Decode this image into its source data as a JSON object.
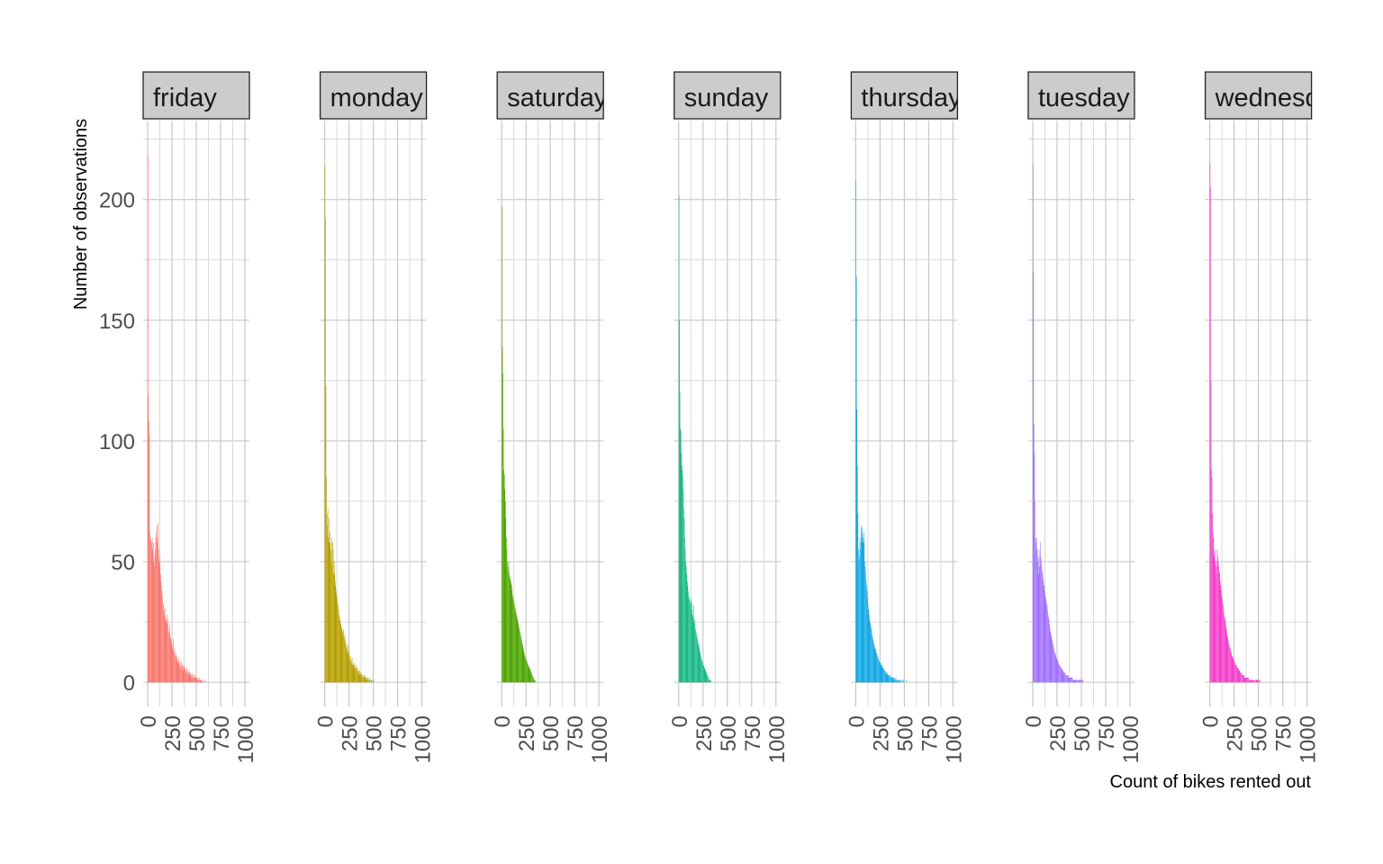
{
  "chart_data": {
    "type": "bar",
    "xlabel": "Count of bikes rented out",
    "ylabel": "Number of observations",
    "xlim": [
      0,
      1000
    ],
    "ylim": [
      0,
      220
    ],
    "x_ticks": [
      0,
      250,
      500,
      750,
      1000
    ],
    "y_ticks": [
      0,
      50,
      100,
      150,
      200
    ],
    "grid": true,
    "legend": "none",
    "bin_width": 5,
    "panels": [
      {
        "name": "friday",
        "color": "#F8766D",
        "values": [
          218,
          119,
          108,
          103,
          62,
          60,
          59,
          58,
          57,
          60,
          55,
          58,
          50,
          48,
          52,
          55,
          60,
          62,
          65,
          58,
          60,
          66,
          55,
          50,
          48,
          52,
          45,
          42,
          40,
          38,
          35,
          33,
          32,
          30,
          28,
          31,
          27,
          26,
          25,
          28,
          24,
          26,
          22,
          20,
          21,
          24,
          19,
          18,
          17,
          16,
          15,
          14,
          18,
          13,
          12,
          14,
          11,
          10,
          12,
          9,
          11,
          8,
          9,
          10,
          8,
          7,
          8,
          6,
          9,
          7,
          6,
          8,
          7,
          5,
          6,
          7,
          5,
          6,
          4,
          5,
          6,
          4,
          5,
          4,
          3,
          4,
          5,
          3,
          4,
          3,
          2,
          3,
          4,
          2,
          3,
          2,
          2,
          3,
          2,
          2,
          1,
          2,
          1,
          2,
          1,
          1,
          2,
          1,
          1,
          1,
          1,
          0,
          1,
          0,
          0,
          1,
          0,
          0,
          1,
          0
        ]
      },
      {
        "name": "monday",
        "color": "#B79F00",
        "values": [
          214,
          192,
          123,
          85,
          70,
          65,
          72,
          60,
          58,
          68,
          62,
          58,
          55,
          50,
          60,
          48,
          58,
          55,
          45,
          50,
          45,
          42,
          40,
          38,
          36,
          35,
          33,
          32,
          30,
          28,
          27,
          26,
          25,
          24,
          23,
          22,
          21,
          20,
          22,
          19,
          18,
          20,
          17,
          16,
          15,
          14,
          13,
          16,
          12,
          11,
          13,
          10,
          9,
          11,
          8,
          9,
          10,
          7,
          8,
          7,
          6,
          8,
          7,
          5,
          6,
          7,
          5,
          6,
          4,
          5,
          4,
          5,
          3,
          4,
          3,
          4,
          3,
          2,
          3,
          2,
          3,
          2,
          2,
          3,
          2,
          1,
          2,
          1,
          2,
          1,
          1,
          2,
          1,
          1,
          0,
          1,
          1,
          0,
          1,
          0,
          0,
          1,
          0,
          0,
          0
        ]
      },
      {
        "name": "saturday",
        "color": "#4DA600",
        "values": [
          197,
          139,
          128,
          105,
          88,
          86,
          80,
          75,
          68,
          60,
          55,
          50,
          48,
          46,
          50,
          45,
          44,
          43,
          42,
          41,
          40,
          38,
          36,
          35,
          34,
          33,
          32,
          31,
          30,
          29,
          28,
          27,
          26,
          25,
          24,
          23,
          22,
          21,
          20,
          19,
          18,
          17,
          16,
          15,
          14,
          13,
          12,
          11,
          10,
          10,
          9,
          9,
          8,
          8,
          7,
          7,
          6,
          6,
          5,
          5,
          4,
          4,
          3,
          3,
          2,
          2,
          1,
          1,
          1,
          0
        ]
      },
      {
        "name": "sunday",
        "color": "#19B887",
        "values": [
          202,
          150,
          120,
          105,
          104,
          95,
          90,
          88,
          85,
          80,
          72,
          68,
          60,
          55,
          50,
          48,
          45,
          42,
          40,
          38,
          36,
          35,
          34,
          33,
          32,
          35,
          30,
          33,
          28,
          27,
          32,
          25,
          24,
          26,
          22,
          21,
          20,
          19,
          18,
          17,
          16,
          15,
          14,
          13,
          12,
          11,
          10,
          9,
          9,
          8,
          7,
          7,
          6,
          6,
          5,
          5,
          4,
          4,
          3,
          3,
          2,
          2,
          1,
          1,
          1,
          0,
          1,
          0,
          0
        ]
      },
      {
        "name": "thursday",
        "color": "#13A7E3",
        "values": [
          208,
          168,
          113,
          90,
          70,
          55,
          50,
          52,
          60,
          55,
          58,
          65,
          62,
          64,
          60,
          58,
          62,
          58,
          50,
          48,
          45,
          42,
          40,
          38,
          35,
          32,
          30,
          28,
          26,
          25,
          24,
          23,
          22,
          20,
          19,
          18,
          17,
          16,
          15,
          14,
          14,
          13,
          12,
          12,
          11,
          10,
          10,
          9,
          9,
          8,
          8,
          8,
          7,
          7,
          7,
          6,
          6,
          6,
          5,
          5,
          5,
          4,
          4,
          4,
          4,
          3,
          3,
          3,
          3,
          3,
          2,
          2,
          3,
          2,
          2,
          2,
          2,
          2,
          1,
          2,
          1,
          1,
          2,
          1,
          1,
          1,
          1,
          1,
          1,
          0,
          1,
          1,
          0,
          1,
          0,
          0,
          1,
          0,
          1,
          0,
          0,
          0,
          0,
          0,
          1,
          0,
          0,
          0
        ]
      },
      {
        "name": "tuesday",
        "color": "#A070FF",
        "values": [
          215,
          170,
          107,
          95,
          75,
          60,
          58,
          55,
          60,
          55,
          50,
          52,
          45,
          48,
          55,
          58,
          52,
          50,
          48,
          46,
          45,
          43,
          41,
          40,
          38,
          36,
          35,
          34,
          33,
          32,
          30,
          28,
          27,
          26,
          24,
          22,
          21,
          20,
          19,
          18,
          17,
          16,
          15,
          14,
          13,
          12,
          12,
          11,
          10,
          10,
          9,
          9,
          8,
          8,
          7,
          7,
          7,
          6,
          6,
          6,
          5,
          5,
          5,
          4,
          4,
          4,
          4,
          3,
          3,
          3,
          3,
          3,
          3,
          2,
          2,
          2,
          2,
          2,
          2,
          2,
          2,
          2,
          1,
          1,
          1,
          1,
          1,
          1,
          1,
          1,
          1,
          1,
          1,
          1,
          1,
          1,
          1,
          1,
          1,
          1,
          0,
          1,
          1,
          1,
          0
        ]
      },
      {
        "name": "wednesday",
        "color": "#F33FCB",
        "values": [
          215,
          205,
          125,
          88,
          85,
          70,
          62,
          60,
          55,
          52,
          50,
          55,
          48,
          45,
          50,
          55,
          52,
          50,
          48,
          46,
          45,
          42,
          40,
          38,
          36,
          35,
          33,
          32,
          30,
          28,
          27,
          26,
          25,
          23,
          22,
          20,
          19,
          18,
          17,
          16,
          15,
          14,
          14,
          13,
          12,
          11,
          11,
          10,
          10,
          9,
          9,
          8,
          8,
          7,
          7,
          7,
          6,
          6,
          6,
          5,
          5,
          5,
          4,
          4,
          4,
          4,
          3,
          3,
          3,
          3,
          3,
          2,
          2,
          2,
          2,
          2,
          2,
          2,
          2,
          2,
          1,
          1,
          1,
          1,
          1,
          1,
          1,
          1,
          1,
          1,
          1,
          1,
          1,
          1,
          0,
          1,
          1,
          1,
          1,
          0,
          1,
          1,
          0,
          1,
          0,
          0
        ]
      }
    ]
  }
}
